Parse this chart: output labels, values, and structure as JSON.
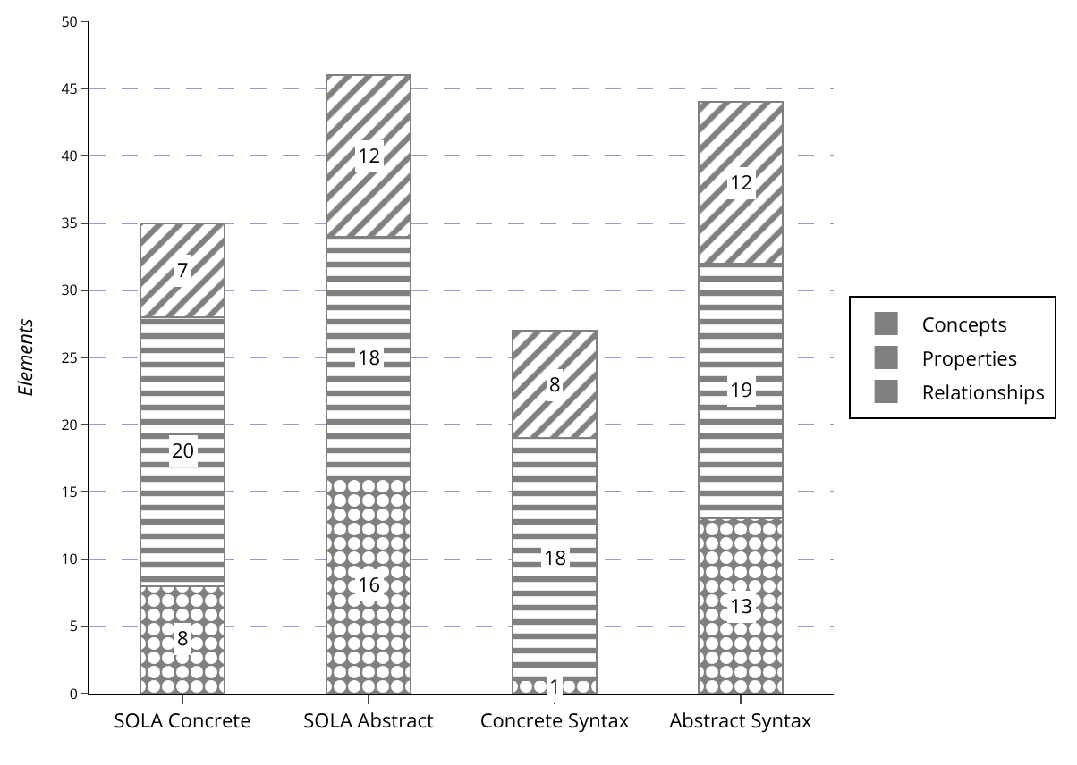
{
  "chart_data": {
    "type": "bar",
    "ylabel": "Elements",
    "categories": [
      "SOLA Concrete",
      "SOLA Abstract",
      "Concrete Syntax",
      "Abstract Syntax"
    ],
    "stacked": true,
    "data_labels": true,
    "grid": "y",
    "legend": "right",
    "ylim": [
      0,
      50
    ],
    "yticks": [
      0,
      5,
      10,
      15,
      20,
      25,
      30,
      35,
      40,
      45,
      50
    ],
    "series": [
      {
        "name": "Relationships",
        "color": "#808080",
        "values": [
          8,
          16,
          1,
          13
        ]
      },
      {
        "name": "Properties",
        "color": "#808080",
        "values": [
          20,
          18,
          18,
          19
        ]
      },
      {
        "name": "Concepts",
        "color": "#808080",
        "values": [
          7,
          12,
          8,
          12
        ]
      }
    ]
  }
}
